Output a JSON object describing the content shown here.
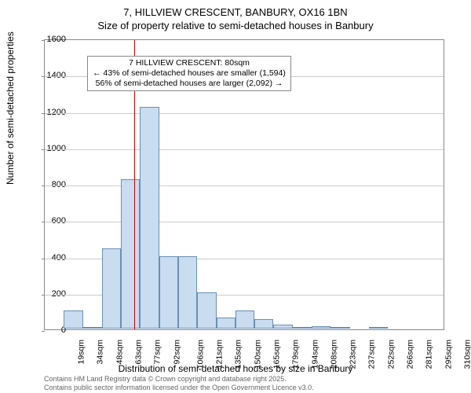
{
  "title": {
    "line1": "7, HILLVIEW CRESCENT, BANBURY, OX16 1BN",
    "line2": "Size of property relative to semi-detached houses in Banbury"
  },
  "chart": {
    "type": "histogram",
    "ylabel": "Number of semi-detached properties",
    "xlabel": "Distribution of semi-detached houses by size in Banbury",
    "ylim": [
      0,
      1600
    ],
    "ytick_step": 200,
    "yticks": [
      0,
      200,
      400,
      600,
      800,
      1000,
      1200,
      1400,
      1600
    ],
    "x_categories": [
      "19sqm",
      "34sqm",
      "48sqm",
      "63sqm",
      "77sqm",
      "92sqm",
      "106sqm",
      "121sqm",
      "135sqm",
      "150sqm",
      "165sqm",
      "179sqm",
      "194sqm",
      "208sqm",
      "223sqm",
      "237sqm",
      "252sqm",
      "266sqm",
      "281sqm",
      "295sqm",
      "310sqm"
    ],
    "values": [
      0,
      100,
      10,
      440,
      820,
      1220,
      400,
      400,
      200,
      60,
      100,
      50,
      20,
      10,
      15,
      5,
      0,
      5,
      0,
      0,
      0
    ],
    "bar_fill": "#c9dcf0",
    "bar_border": "#6b8fb5",
    "grid_color": "#cccccc",
    "background_color": "#ffffff",
    "reference": {
      "label_sqm": "80sqm",
      "x_category_index_left_of": 5,
      "line_color": "#cc0000",
      "annot_lines": [
        "7 HILLVIEW CRESCENT: 80sqm",
        "← 43% of semi-detached houses are smaller (1,594)",
        "56% of semi-detached houses are larger (2,092) →"
      ]
    }
  },
  "credits": {
    "line1": "Contains HM Land Registry data © Crown copyright and database right 2025.",
    "line2": "Contains public sector information licensed under the Open Government Licence v3.0."
  }
}
